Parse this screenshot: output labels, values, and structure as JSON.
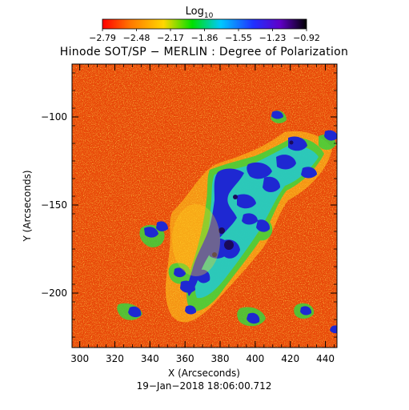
{
  "colorbar": {
    "title": "Log",
    "title_subscript": "10",
    "tick_labels": [
      "−2.79",
      "−2.48",
      "−2.17",
      "−1.86",
      "−1.55",
      "−1.23",
      "−0.92"
    ],
    "colors": [
      "#ff0000",
      "#ff7a00",
      "#ffd700",
      "#00e000",
      "#00c8ff",
      "#2030ff",
      "#6000c8",
      "#000000"
    ]
  },
  "plot": {
    "title": "Hinode SOT/SP − MERLIN : Degree of Polarization",
    "x_label": "X (Arcseconds)",
    "y_label": "Y (Arcseconds)",
    "x_ticks": [
      "300",
      "320",
      "340",
      "360",
      "380",
      "400",
      "420",
      "440"
    ],
    "y_ticks": [
      "−100",
      "−150",
      "−200"
    ],
    "timestamp": "19−Jan−2018 18:06:00.712",
    "map_colors": {
      "background": "#e84a0a",
      "quiet": "#f08a1e",
      "yellow": "#ffd21e",
      "green": "#3cd23c",
      "cyan": "#1ec8e6",
      "blue": "#1e28d2",
      "dark": "#1a0a5a"
    }
  }
}
